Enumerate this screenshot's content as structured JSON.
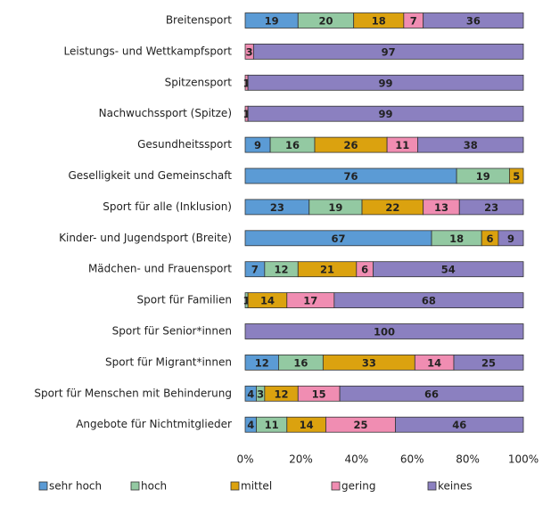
{
  "chart_data": {
    "type": "stacked_bar_horizontal",
    "categories": [
      "Breitensport",
      "Leistungs- und Wettkampfsport",
      "Spitzensport",
      "Nachwuchssport (Spitze)",
      "Gesundheitssport",
      "Geselligkeit und Gemeinschaft",
      "Sport für alle (Inklusion)",
      "Kinder- und Jugendsport (Breite)",
      "Mädchen- und Frauensport",
      "Sport für Familien",
      "Sport für Senior*innen",
      "Sport für Migrant*innen",
      "Sport für Menschen mit Behinderung",
      "Angebote für Nichtmitglieder"
    ],
    "series": [
      {
        "name": "sehr hoch",
        "color": "#5b9bd5",
        "values": [
          19,
          0,
          0,
          0,
          9,
          76,
          23,
          67,
          7,
          0,
          0,
          12,
          4,
          4
        ]
      },
      {
        "name": "hoch",
        "color": "#93c9a2",
        "values": [
          20,
          0,
          0,
          0,
          16,
          19,
          19,
          18,
          12,
          1,
          0,
          16,
          3,
          11
        ]
      },
      {
        "name": "mittel",
        "color": "#dba20f",
        "values": [
          18,
          0,
          0,
          0,
          26,
          5,
          22,
          6,
          21,
          14,
          0,
          33,
          12,
          14
        ]
      },
      {
        "name": "gering",
        "color": "#f08db2",
        "values": [
          7,
          3,
          1,
          1,
          11,
          0,
          13,
          0,
          6,
          17,
          0,
          14,
          15,
          25
        ]
      },
      {
        "name": "keines",
        "color": "#8b80c0",
        "values": [
          36,
          97,
          99,
          99,
          38,
          0,
          23,
          9,
          54,
          68,
          100,
          25,
          66,
          46
        ]
      }
    ],
    "xlim": [
      0,
      100
    ],
    "xticks": [
      {
        "value": 0,
        "label": "0%"
      },
      {
        "value": 20,
        "label": "20%"
      },
      {
        "value": 40,
        "label": "40%"
      },
      {
        "value": 60,
        "label": "60%"
      },
      {
        "value": 80,
        "label": "80%"
      },
      {
        "value": 100,
        "label": "100%"
      }
    ],
    "legend": "bottom"
  }
}
